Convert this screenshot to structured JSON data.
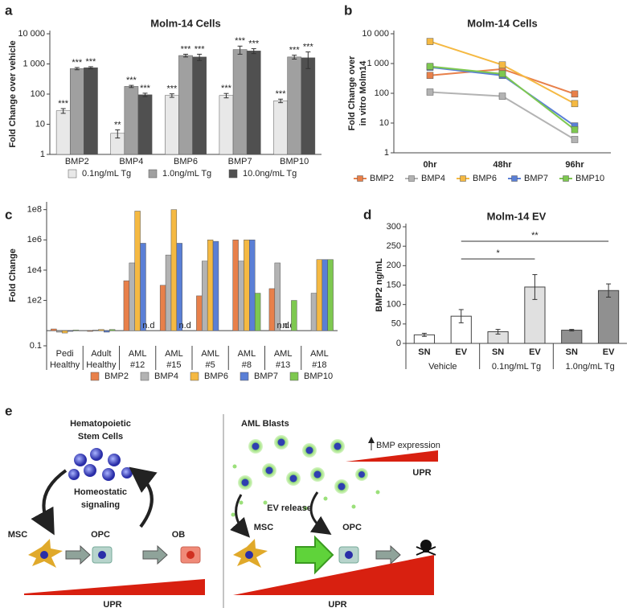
{
  "chart_data": [
    {
      "panel": "a",
      "type": "bar",
      "title": "Molm-14 Cells",
      "ylabel": "Fold Change over vehicle",
      "log": true,
      "categories": [
        "BMP2",
        "BMP4",
        "BMP6",
        "BMP7",
        "BMP10"
      ],
      "series": [
        {
          "name": "0.1ng/mL Tg",
          "color": "#e8e8e8",
          "values": [
            28,
            5,
            90,
            90,
            60
          ],
          "errors": [
            5,
            1.5,
            12,
            15,
            8
          ],
          "stars": [
            "***",
            "**",
            "***",
            "***",
            "***"
          ]
        },
        {
          "name": "1.0ng/mL Tg",
          "color": "#a0a0a0",
          "values": [
            700,
            180,
            1900,
            3000,
            1700
          ],
          "errors": [
            60,
            15,
            200,
            900,
            250
          ],
          "stars": [
            "***",
            "***",
            "***",
            "***",
            "***"
          ]
        },
        {
          "name": "10.0ng/mL Tg",
          "color": "#505050",
          "values": [
            750,
            95,
            1700,
            2700,
            1600
          ],
          "errors": [
            60,
            12,
            400,
            500,
            900
          ],
          "stars": [
            "***",
            "***",
            "***",
            "***",
            "***"
          ]
        }
      ],
      "ylim": [
        1,
        10000
      ],
      "yticks": [
        1,
        10,
        100,
        {
          "value": 1000,
          "label": "1 000"
        },
        {
          "value": 10000,
          "label": "10 000"
        }
      ]
    },
    {
      "panel": "b",
      "type": "line",
      "title": "Molm-14 Cells",
      "ylabel": [
        "Fold Change over",
        "in vitro Molm14"
      ],
      "log": true,
      "categories": [
        "0hr",
        "48hr",
        "96hr"
      ],
      "series": [
        {
          "name": "BMP2",
          "color": "#e8804a",
          "values": [
            400,
            650,
            95
          ]
        },
        {
          "name": "BMP4",
          "color": "#b3b3b3",
          "values": [
            110,
            80,
            2.8
          ]
        },
        {
          "name": "BMP6",
          "color": "#f5b942",
          "values": [
            5500,
            900,
            45
          ]
        },
        {
          "name": "BMP7",
          "color": "#5a7fd6",
          "values": [
            750,
            400,
            8
          ]
        },
        {
          "name": "BMP10",
          "color": "#7ec850",
          "values": [
            800,
            450,
            6
          ]
        }
      ],
      "ylim": [
        1,
        10000
      ],
      "yticks": [
        1,
        10,
        100,
        {
          "value": 1000,
          "label": "1 000"
        },
        {
          "value": 10000,
          "label": "10 000"
        }
      ]
    },
    {
      "panel": "c",
      "type": "bar",
      "ylabel": "Fold Change",
      "log": true,
      "categories": [
        [
          "Pedi",
          "Healthy"
        ],
        [
          "Adult",
          "Healthy"
        ],
        [
          "AML",
          "#12"
        ],
        [
          "AML",
          "#15"
        ],
        [
          "AML",
          "#5"
        ],
        [
          "AML",
          "#8"
        ],
        [
          "AML",
          "#13"
        ],
        [
          "AML",
          "#18"
        ]
      ],
      "series": [
        {
          "name": "BMP2",
          "color": "#e8804a",
          "values": [
            1.3,
            0.9,
            2000,
            1000,
            200,
            1000000,
            600,
            null
          ],
          "value_labels": [
            null,
            null,
            null,
            null,
            null,
            null,
            null,
            null
          ]
        },
        {
          "name": "BMP4",
          "color": "#b3b3b3",
          "values": [
            0.8,
            1.1,
            30000,
            100000,
            40000,
            40000,
            30000,
            300
          ],
          "value_labels": [
            null,
            null,
            null,
            null,
            null,
            null,
            null,
            null
          ]
        },
        {
          "name": "BMP6",
          "color": "#f5b942",
          "values": [
            0.7,
            1.2,
            80000000,
            100000000,
            1000000,
            1000000,
            null,
            50000
          ],
          "value_labels": [
            null,
            null,
            null,
            null,
            null,
            null,
            "n.d",
            null
          ]
        },
        {
          "name": "BMP7",
          "color": "#5a7fd6",
          "values": [
            0.9,
            0.8,
            600000,
            600000,
            800000,
            1000000,
            null,
            50000
          ],
          "value_labels": [
            null,
            null,
            null,
            null,
            null,
            null,
            "n.d",
            null
          ]
        },
        {
          "name": "BMP10",
          "color": "#7ec850",
          "values": [
            1.1,
            1.2,
            null,
            null,
            null,
            300,
            100,
            50000
          ],
          "value_labels": [
            null,
            null,
            "n.d",
            "n.d",
            null,
            null,
            null,
            null
          ]
        }
      ],
      "ylim": [
        0.1,
        200000000
      ],
      "yticks": [
        0.1,
        {
          "value": 100,
          "label": "1e2"
        },
        {
          "value": 10000,
          "label": "1e4"
        },
        {
          "value": 1000000,
          "label": "1e6"
        },
        {
          "value": 100000000,
          "label": "1e8"
        }
      ]
    },
    {
      "panel": "d",
      "type": "bar",
      "title": "Molm-14 EV",
      "ylabel": "BMP2 ng/mL",
      "categories": [
        "SN",
        "EV",
        "SN",
        "EV",
        "SN",
        "EV"
      ],
      "values": [
        22,
        70,
        30,
        145,
        34,
        136
      ],
      "errors": [
        4,
        17,
        6,
        32,
        2,
        17
      ],
      "colors": [
        "#ffffff",
        "#ffffff",
        "#e0e0e0",
        "#e0e0e0",
        "#909090",
        "#909090"
      ],
      "groups": [
        "Vehicle",
        "0.1ng/mL Tg",
        "1.0ng/mL Tg"
      ],
      "significance": [
        {
          "label": "*",
          "from": 1,
          "to": 3
        },
        {
          "label": "**",
          "from": 1,
          "to": 5
        }
      ],
      "ylim": [
        0,
        300
      ],
      "yticks": [
        0,
        50,
        100,
        150,
        200,
        250,
        300
      ]
    }
  ],
  "diagram": {
    "panel": "e",
    "hsc": [
      "Hematopoietic",
      "Stem Cells"
    ],
    "signaling": [
      "Homeostatic",
      "signaling"
    ],
    "left_cells": [
      "MSC",
      "OPC",
      "OB"
    ],
    "left_gradient": "UPR",
    "aml": "AML Blasts",
    "bmp": "BMP expression",
    "aml_gradient": "UPR",
    "ev": "EV release",
    "right_cells": [
      "MSC",
      "OPC"
    ],
    "right_gradient": "UPR"
  }
}
